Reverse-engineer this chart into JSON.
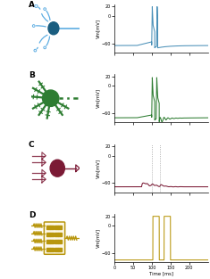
{
  "panel_labels": [
    "A",
    "B",
    "C",
    "D"
  ],
  "colors": {
    "A_dark": "#1a5276",
    "A_light": "#5dade2",
    "B": "#2e7d32",
    "C": "#7b1a35",
    "D": "#b8960c"
  },
  "ylabel": "Vm[mV]",
  "xlabel": "Time [ms]",
  "ylim": [
    -80,
    25
  ],
  "xlim": [
    0,
    250
  ],
  "xticks": [
    0,
    50,
    100,
    150,
    200
  ],
  "yticks": [
    -60,
    0,
    20
  ],
  "background": "#ffffff",
  "trace_colors": {
    "A": "#4a90b8",
    "B": "#2e7d32",
    "C": "#7b1a35",
    "D": "#b8960c"
  }
}
